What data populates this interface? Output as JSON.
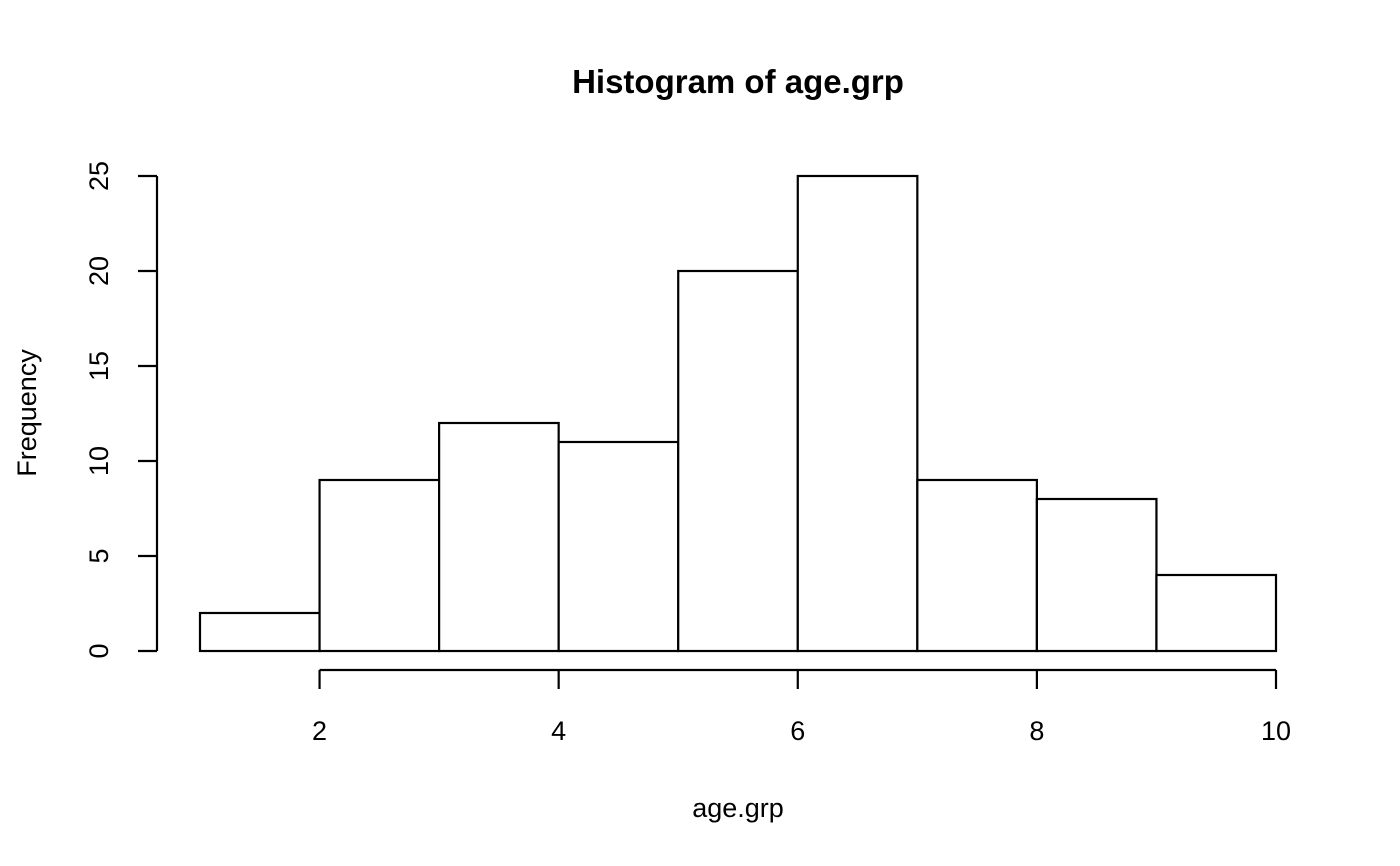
{
  "chart_data": {
    "type": "bar",
    "title": "Histogram of age.grp",
    "xlabel": "age.grp",
    "ylabel": "Frequency",
    "bins": [
      {
        "x0": 1,
        "x1": 2,
        "count": 2
      },
      {
        "x0": 2,
        "x1": 3,
        "count": 9
      },
      {
        "x0": 3,
        "x1": 4,
        "count": 12
      },
      {
        "x0": 4,
        "x1": 5,
        "count": 11
      },
      {
        "x0": 5,
        "x1": 6,
        "count": 20
      },
      {
        "x0": 6,
        "x1": 7,
        "count": 25
      },
      {
        "x0": 7,
        "x1": 8,
        "count": 9
      },
      {
        "x0": 8,
        "x1": 9,
        "count": 8
      },
      {
        "x0": 9,
        "x1": 10,
        "count": 4
      }
    ],
    "x_ticks": [
      2,
      4,
      6,
      8,
      10
    ],
    "y_ticks": [
      0,
      5,
      10,
      15,
      20,
      25
    ],
    "xlim": [
      1,
      10
    ],
    "ylim": [
      0,
      25
    ],
    "grid": false,
    "legend": "none",
    "colors": {
      "bar_fill": "#ffffff",
      "bar_stroke": "#000000"
    }
  }
}
